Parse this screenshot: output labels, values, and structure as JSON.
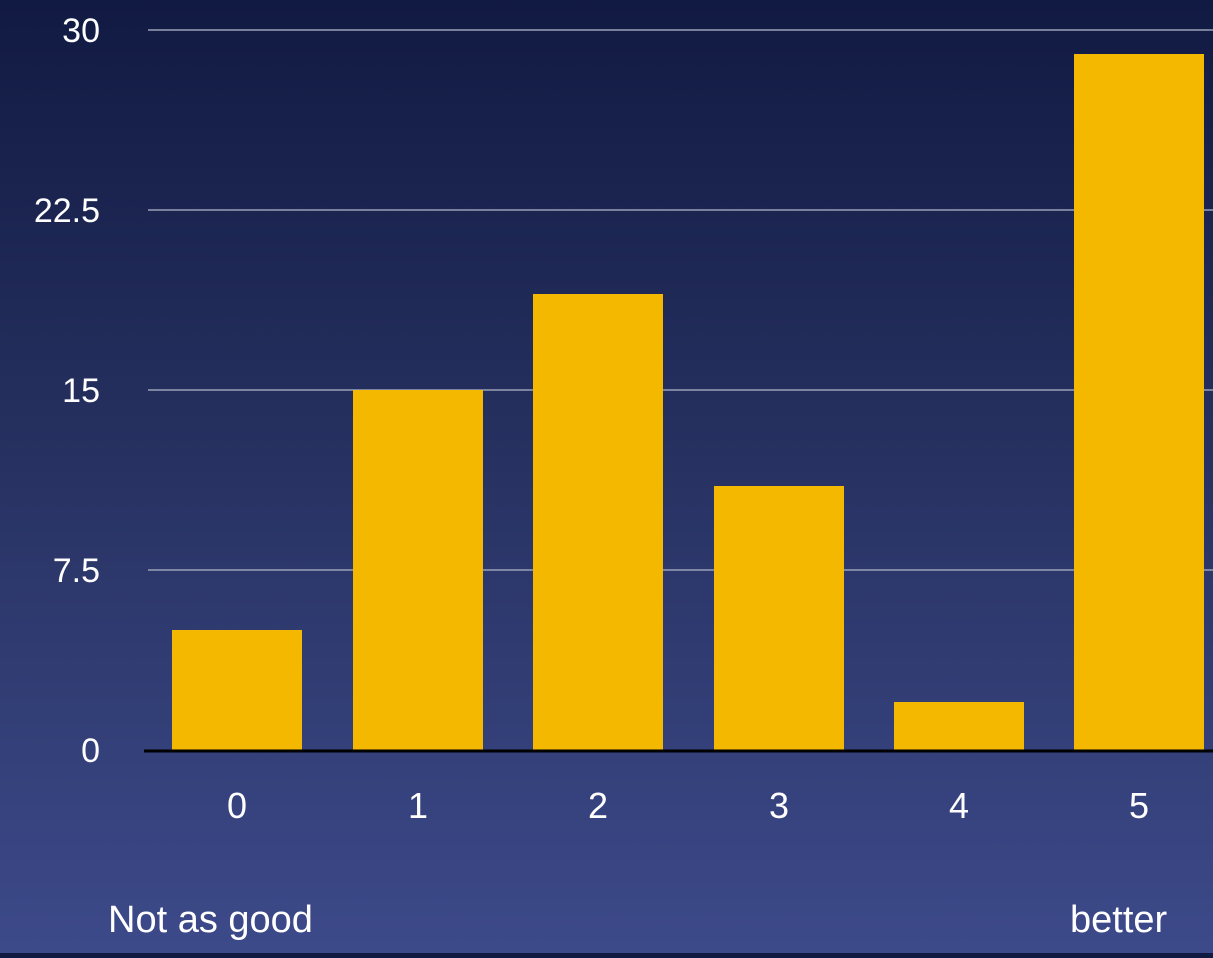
{
  "chart_data": {
    "type": "bar",
    "categories": [
      "0",
      "1",
      "2",
      "3",
      "4",
      "5"
    ],
    "values": [
      5,
      15,
      19,
      11,
      2,
      29
    ],
    "ylim": [
      0,
      30
    ],
    "yticks": [
      "0",
      "7.5",
      "15",
      "22.5",
      "30"
    ],
    "ytick_values": [
      0,
      7.5,
      15,
      22.5,
      30
    ],
    "grid": true,
    "legend": "none",
    "scale_labels": {
      "low": "Not as good",
      "high": "better"
    },
    "colors": {
      "bar": "#f5b800",
      "gridline": "#9aa0b8",
      "baseline": "#000000",
      "text": "#ffffff"
    }
  }
}
